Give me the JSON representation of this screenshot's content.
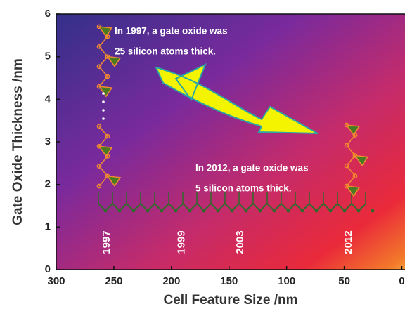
{
  "chart_data": {
    "type": "annotated-area",
    "xlabel": "Cell Feature Size /nm",
    "ylabel": "Gate Oxide Thickness /nm",
    "xlim": [
      300,
      0
    ],
    "ylim": [
      0,
      6
    ],
    "xticks": [
      300,
      250,
      200,
      150,
      100,
      50,
      0
    ],
    "yticks": [
      0,
      1,
      2,
      3,
      4,
      5,
      6
    ],
    "annotations": [
      {
        "lines": [
          "In 1997, a gate oxide was",
          "25 silicon atoms thick."
        ]
      },
      {
        "lines": [
          "In 2012, a gate oxide was",
          "5 silicon atoms thick."
        ]
      }
    ],
    "year_markers": [
      {
        "label": "1997",
        "x": 256
      },
      {
        "label": "1999",
        "x": 191
      },
      {
        "label": "2003",
        "x": 140
      },
      {
        "label": "2012",
        "x": 46
      }
    ]
  }
}
